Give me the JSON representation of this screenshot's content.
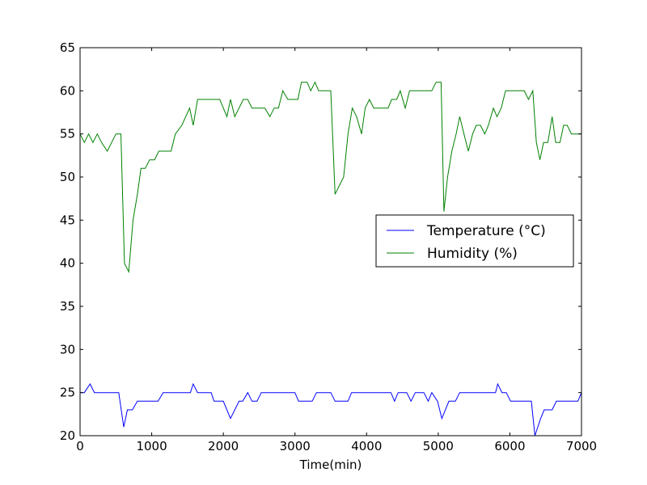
{
  "chart_data": {
    "type": "line",
    "title": "",
    "xlabel": "Time(min)",
    "ylabel": "",
    "xlim": [
      0,
      7000
    ],
    "ylim": [
      20,
      65
    ],
    "xticks": [
      0,
      1000,
      2000,
      3000,
      4000,
      5000,
      6000,
      7000
    ],
    "yticks": [
      20,
      25,
      30,
      35,
      40,
      45,
      50,
      55,
      60,
      65
    ],
    "grid": false,
    "legend_position": "center-right",
    "series": [
      {
        "name": "Temperature (°C)",
        "color": "#0000ff",
        "points": [
          [
            0,
            25
          ],
          [
            60,
            25
          ],
          [
            140,
            26
          ],
          [
            200,
            25
          ],
          [
            540,
            25
          ],
          [
            610,
            21
          ],
          [
            660,
            23
          ],
          [
            730,
            23
          ],
          [
            800,
            24
          ],
          [
            1090,
            24
          ],
          [
            1160,
            25
          ],
          [
            1540,
            25
          ],
          [
            1580,
            26
          ],
          [
            1640,
            25
          ],
          [
            1830,
            25
          ],
          [
            1870,
            24
          ],
          [
            2000,
            24
          ],
          [
            2100,
            22
          ],
          [
            2220,
            24
          ],
          [
            2270,
            24
          ],
          [
            2340,
            25
          ],
          [
            2400,
            24
          ],
          [
            2470,
            24
          ],
          [
            2530,
            25
          ],
          [
            3000,
            25
          ],
          [
            3050,
            24
          ],
          [
            3240,
            24
          ],
          [
            3300,
            25
          ],
          [
            3500,
            25
          ],
          [
            3560,
            24
          ],
          [
            3740,
            24
          ],
          [
            3790,
            25
          ],
          [
            4340,
            25
          ],
          [
            4390,
            24
          ],
          [
            4440,
            25
          ],
          [
            4560,
            25
          ],
          [
            4620,
            24
          ],
          [
            4680,
            25
          ],
          [
            4800,
            25
          ],
          [
            4860,
            24
          ],
          [
            4910,
            25
          ],
          [
            4990,
            24
          ],
          [
            5050,
            22
          ],
          [
            5150,
            24
          ],
          [
            5240,
            24
          ],
          [
            5300,
            25
          ],
          [
            5800,
            25
          ],
          [
            5830,
            26
          ],
          [
            5890,
            25
          ],
          [
            5950,
            25
          ],
          [
            6010,
            24
          ],
          [
            6300,
            24
          ],
          [
            6350,
            20
          ],
          [
            6430,
            22
          ],
          [
            6480,
            23
          ],
          [
            6590,
            23
          ],
          [
            6650,
            24
          ],
          [
            6950,
            24
          ],
          [
            7000,
            25
          ]
        ]
      },
      {
        "name": "Humidity (%)",
        "color": "#008000",
        "points": [
          [
            0,
            55
          ],
          [
            60,
            54
          ],
          [
            120,
            55
          ],
          [
            180,
            54
          ],
          [
            240,
            55
          ],
          [
            300,
            54
          ],
          [
            380,
            53
          ],
          [
            440,
            54
          ],
          [
            500,
            55
          ],
          [
            570,
            55
          ],
          [
            620,
            40
          ],
          [
            680,
            39
          ],
          [
            740,
            45
          ],
          [
            800,
            48
          ],
          [
            850,
            51
          ],
          [
            910,
            51
          ],
          [
            970,
            52
          ],
          [
            1040,
            52
          ],
          [
            1100,
            53
          ],
          [
            1270,
            53
          ],
          [
            1330,
            55
          ],
          [
            1420,
            56
          ],
          [
            1530,
            58
          ],
          [
            1580,
            56
          ],
          [
            1640,
            59
          ],
          [
            1950,
            59
          ],
          [
            2050,
            57
          ],
          [
            2100,
            59
          ],
          [
            2160,
            57
          ],
          [
            2280,
            59
          ],
          [
            2340,
            59
          ],
          [
            2400,
            58
          ],
          [
            2580,
            58
          ],
          [
            2650,
            57
          ],
          [
            2710,
            58
          ],
          [
            2770,
            58
          ],
          [
            2830,
            60
          ],
          [
            2900,
            59
          ],
          [
            3040,
            59
          ],
          [
            3090,
            61
          ],
          [
            3170,
            61
          ],
          [
            3220,
            60
          ],
          [
            3280,
            61
          ],
          [
            3330,
            60
          ],
          [
            3500,
            60
          ],
          [
            3560,
            48
          ],
          [
            3680,
            50
          ],
          [
            3740,
            55
          ],
          [
            3800,
            58
          ],
          [
            3860,
            57
          ],
          [
            3930,
            55
          ],
          [
            3980,
            58
          ],
          [
            4040,
            59
          ],
          [
            4100,
            58
          ],
          [
            4300,
            58
          ],
          [
            4350,
            59
          ],
          [
            4420,
            59
          ],
          [
            4470,
            60
          ],
          [
            4540,
            58
          ],
          [
            4600,
            60
          ],
          [
            4910,
            60
          ],
          [
            4970,
            61
          ],
          [
            5040,
            61
          ],
          [
            5080,
            46
          ],
          [
            5130,
            50
          ],
          [
            5190,
            53
          ],
          [
            5250,
            55
          ],
          [
            5300,
            57
          ],
          [
            5360,
            55
          ],
          [
            5420,
            53
          ],
          [
            5480,
            55
          ],
          [
            5530,
            56
          ],
          [
            5590,
            56
          ],
          [
            5650,
            55
          ],
          [
            5700,
            56
          ],
          [
            5770,
            58
          ],
          [
            5820,
            57
          ],
          [
            5880,
            58
          ],
          [
            5940,
            60
          ],
          [
            6200,
            60
          ],
          [
            6260,
            59
          ],
          [
            6320,
            60
          ],
          [
            6370,
            54
          ],
          [
            6420,
            52
          ],
          [
            6470,
            54
          ],
          [
            6530,
            54
          ],
          [
            6590,
            57
          ],
          [
            6640,
            54
          ],
          [
            6700,
            54
          ],
          [
            6750,
            56
          ],
          [
            6800,
            56
          ],
          [
            6860,
            55
          ],
          [
            7000,
            55
          ]
        ]
      }
    ]
  }
}
